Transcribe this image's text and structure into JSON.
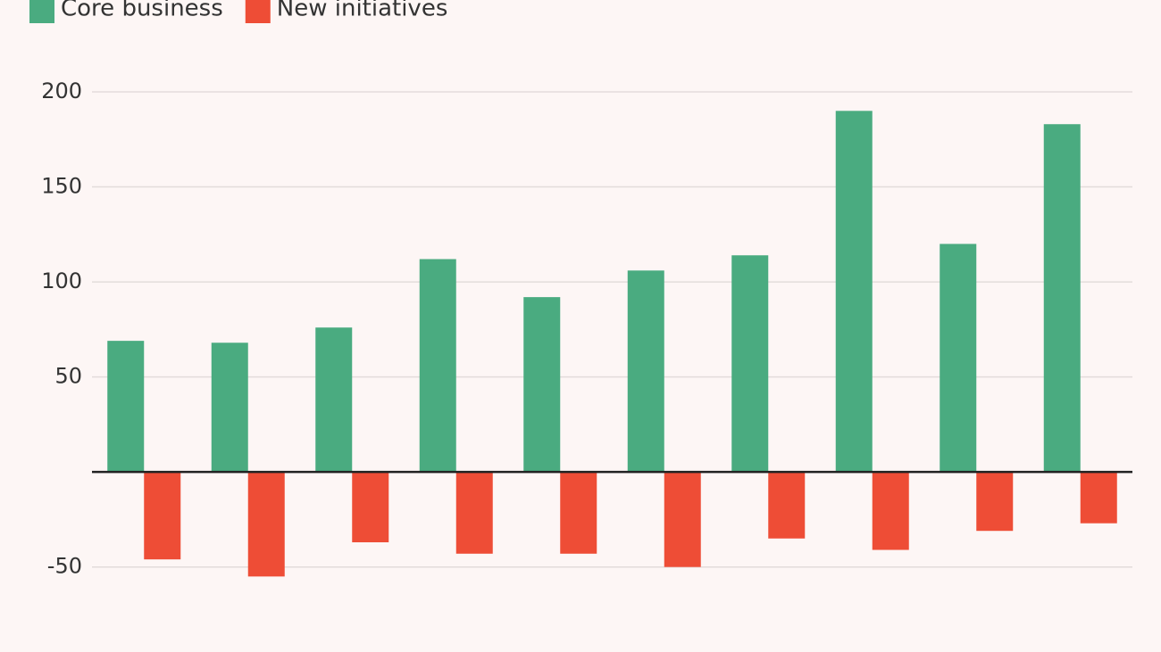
{
  "chart_data": {
    "type": "bar",
    "categories": [
      null,
      null,
      null,
      null,
      null,
      null,
      null,
      null,
      null,
      null
    ],
    "series": [
      {
        "name": "Core business",
        "color": "#4aab80",
        "values": [
          69,
          68,
          76,
          112,
          92,
          106,
          114,
          190,
          120,
          183
        ]
      },
      {
        "name": "New initiatives",
        "color": "#ee4d36",
        "values": [
          -46,
          -55,
          -37,
          -43,
          -43,
          -50,
          -35,
          -41,
          -31,
          -27
        ]
      }
    ],
    "ylim": [
      -60,
      200
    ],
    "yticks": [
      -50,
      50,
      100,
      150,
      200
    ],
    "grid": true,
    "legend": "top-left"
  }
}
